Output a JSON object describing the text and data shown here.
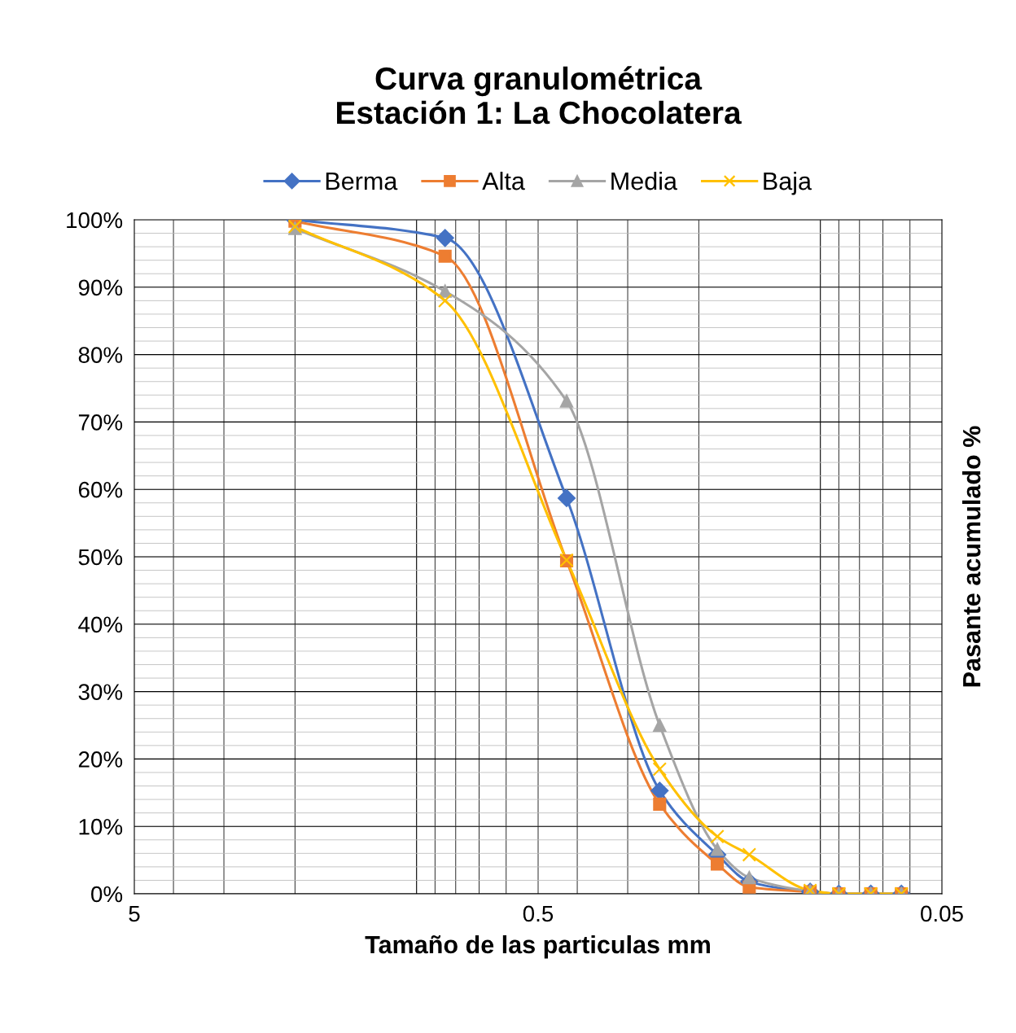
{
  "chart_data": {
    "type": "line",
    "title": "Curva granulométrica\nEstación 1: La Chocolatera",
    "xlabel": "Tamaño de las particulas mm",
    "ylabel": "Pasante acumulado %",
    "x": [
      2,
      0.85,
      0.425,
      0.25,
      0.18,
      0.15,
      0.106,
      0.09,
      0.075,
      0.063
    ],
    "series": [
      {
        "name": "Berma",
        "color": "#4472c4",
        "marker": "diamond",
        "values": [
          100,
          97.3,
          58.7,
          15.3,
          5.8,
          1.8,
          0.3,
          0,
          0,
          0
        ]
      },
      {
        "name": "Alta",
        "color": "#ed7d31",
        "marker": "square",
        "values": [
          99.8,
          94.6,
          49.4,
          13.3,
          4.4,
          1.0,
          0.3,
          0,
          0,
          0
        ]
      },
      {
        "name": "Media",
        "color": "#a5a5a5",
        "marker": "triangle",
        "values": [
          98.7,
          89.4,
          73.1,
          25,
          6.6,
          2.4,
          0.4,
          0,
          0,
          0
        ]
      },
      {
        "name": "Baja",
        "color": "#ffc000",
        "marker": "cross",
        "values": [
          99,
          88,
          49.5,
          18.5,
          8.5,
          5.8,
          0.5,
          0,
          0,
          0
        ]
      }
    ],
    "log": "x",
    "xlim": [
      5,
      0.05
    ],
    "xticks": [
      5,
      0.5,
      0.05
    ],
    "ylim": [
      0,
      100
    ],
    "yticks": [
      {
        "value": 0,
        "label": "0%"
      },
      {
        "value": 10,
        "label": "10%"
      },
      {
        "value": 20,
        "label": "20%"
      },
      {
        "value": 30,
        "label": "30%"
      },
      {
        "value": 40,
        "label": "40%"
      },
      {
        "value": 50,
        "label": "50%"
      },
      {
        "value": 60,
        "label": "60%"
      },
      {
        "value": 70,
        "label": "70%"
      },
      {
        "value": 80,
        "label": "80%"
      },
      {
        "value": 90,
        "label": "90%"
      },
      {
        "value": 100,
        "label": "100%"
      }
    ],
    "grid": true,
    "legend": "top",
    "line_style": "solid"
  }
}
